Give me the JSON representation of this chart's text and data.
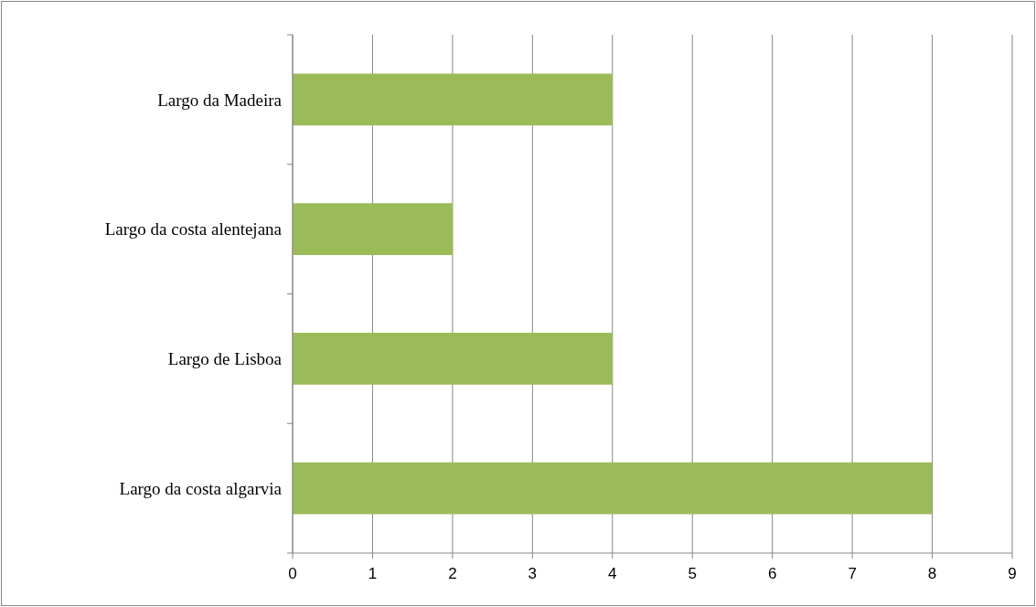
{
  "chart_data": {
    "type": "bar",
    "orientation": "horizontal",
    "categories": [
      "Largo da Madeira",
      "Largo da costa alentejana",
      "Largo de Lisboa",
      "Largo da costa algarvia"
    ],
    "values": [
      4,
      2,
      4,
      8
    ],
    "color": "#9bbb59",
    "xlim": [
      0,
      9
    ],
    "xticks": [
      0,
      1,
      2,
      3,
      4,
      5,
      6,
      7,
      8,
      9
    ],
    "grid": "x"
  }
}
